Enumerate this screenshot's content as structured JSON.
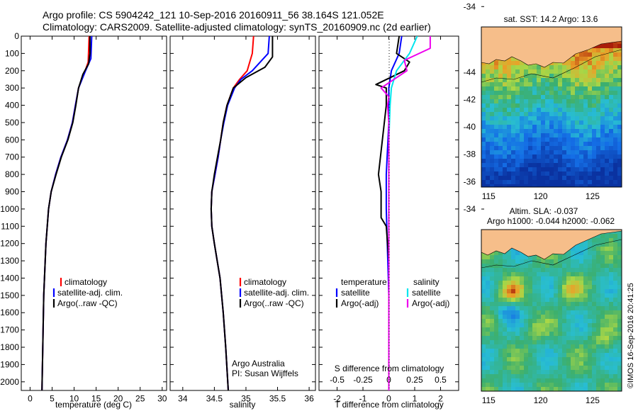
{
  "header": {
    "line1": "Argo profile: CS 5904242_121 10-Sep-2016 20160911_56 38.164S 121.052E",
    "line2": "Climatology: CARS2009. Satellite-adjusted climatology: synTS_20160909.nc (2d earlier)"
  },
  "sst_map": {
    "title": "sat. SST: 14.2 Argo: 13.6"
  },
  "sla_map": {
    "title1": "Altim. SLA: -0.037",
    "title2": "Argo h1000: -0.044 h2000: -0.062"
  },
  "credit": "©IMOS 16-Sep-2016 20:41:25",
  "colors": {
    "climatology": "#ff0000",
    "satellite": "#0000ff",
    "argo": "#000000",
    "cyan": "#00e5ee",
    "magenta": "#ee00ee"
  },
  "chart_data": [
    {
      "type": "line",
      "panel": "temperature",
      "xlabel": "temperature (deg C)",
      "ylabel": "",
      "xlim": [
        -2,
        31
      ],
      "ylim": [
        2050,
        0
      ],
      "xticks": [
        "0",
        "5",
        "10",
        "15",
        "20",
        "25",
        "30"
      ],
      "yticks": [
        "0",
        "100",
        "200",
        "300",
        "400",
        "500",
        "600",
        "700",
        "800",
        "900",
        "1000",
        "1100",
        "1200",
        "1300",
        "1400",
        "1500",
        "1600",
        "1700",
        "1800",
        "1900",
        "2000"
      ],
      "legend": [
        "climatology",
        "satellite-adj. clim.",
        "Argo(..raw -QC)"
      ],
      "series": [
        {
          "name": "climatology",
          "color": "red",
          "depth": [
            0,
            150,
            200,
            300,
            400,
            500,
            600,
            700,
            800,
            900,
            1000,
            1200,
            1500,
            2050
          ],
          "values": [
            13.4,
            13.2,
            12.5,
            11.0,
            10.3,
            9.6,
            8.5,
            7.0,
            5.8,
            4.8,
            4.2,
            3.6,
            3.1,
            2.7
          ]
        },
        {
          "name": "satellite-adj. clim.",
          "color": "blue",
          "depth": [
            0,
            130,
            200,
            300,
            400,
            500,
            600,
            700,
            800,
            900,
            1000,
            1200,
            1500,
            2050
          ],
          "values": [
            14.0,
            13.8,
            12.6,
            11.0,
            10.3,
            9.6,
            8.5,
            7.0,
            5.8,
            4.8,
            4.2,
            3.6,
            3.1,
            2.7
          ]
        },
        {
          "name": "Argo(..raw -QC)",
          "color": "black",
          "depth": [
            0,
            100,
            160,
            220,
            300,
            400,
            500,
            600,
            700,
            800,
            900,
            1000,
            1200,
            1500,
            2050
          ],
          "values": [
            13.6,
            13.6,
            13.3,
            12.0,
            11.0,
            10.4,
            9.7,
            8.6,
            7.1,
            5.9,
            4.8,
            4.2,
            3.6,
            3.1,
            2.7
          ]
        }
      ]
    },
    {
      "type": "line",
      "panel": "salinity",
      "xlabel": "salinity",
      "ylabel": "",
      "xlim": [
        33.8,
        36.1
      ],
      "ylim": [
        2050,
        0
      ],
      "xticks": [
        "34",
        "34.5",
        "35",
        "35.5",
        "36"
      ],
      "legend": [
        "climatology",
        "satellite-adj. clim.",
        "Argo(..raw -QC)"
      ],
      "annotation1": "Argo Australia",
      "annotation2": "PI: Susan Wijffels",
      "series": [
        {
          "name": "climatology",
          "color": "red",
          "depth": [
            0,
            100,
            200,
            250,
            300,
            400,
            500,
            600,
            700,
            800,
            900,
            1000,
            1100,
            1200,
            1400,
            1600,
            1800,
            2050
          ],
          "values": [
            35.12,
            35.1,
            35.02,
            34.9,
            34.8,
            34.7,
            34.64,
            34.6,
            34.56,
            34.51,
            34.46,
            34.45,
            34.46,
            34.5,
            34.59,
            34.64,
            34.68,
            34.72
          ]
        },
        {
          "name": "satellite-adj. clim.",
          "color": "blue",
          "depth": [
            0,
            100,
            200,
            250,
            300,
            400,
            500,
            600,
            700,
            800,
            900,
            1000,
            1100,
            1200,
            1400,
            1600,
            1800,
            2050
          ],
          "values": [
            35.37,
            35.35,
            35.1,
            34.92,
            34.82,
            34.71,
            34.65,
            34.6,
            34.56,
            34.51,
            34.46,
            34.45,
            34.46,
            34.5,
            34.59,
            34.64,
            34.68,
            34.72
          ]
        },
        {
          "name": "Argo(..raw -QC)",
          "color": "black",
          "depth": [
            0,
            120,
            180,
            240,
            300,
            400,
            500,
            600,
            700,
            800,
            900,
            1000,
            1100,
            1200,
            1400,
            1600,
            1800,
            2050
          ],
          "values": [
            35.42,
            35.42,
            35.3,
            35.0,
            34.8,
            34.7,
            34.64,
            34.6,
            34.55,
            34.5,
            34.46,
            34.45,
            34.46,
            34.5,
            34.59,
            34.64,
            34.68,
            34.72
          ]
        }
      ]
    },
    {
      "type": "line",
      "panel": "differences",
      "xlabel": "T difference from climatology",
      "xlabel2": "S difference from climatology",
      "xlim": [
        -2.7,
        2.7
      ],
      "ylim": [
        2050,
        0
      ],
      "xticks": [
        "-2",
        "-1",
        "0",
        "1",
        "2"
      ],
      "xticks2": [
        "-0.5",
        "-0.25",
        "0",
        "0.25",
        "0.5"
      ],
      "legend_left_title": "temperature",
      "legend_right_title": "salinity",
      "legend_left": [
        "satellite",
        "Argo(-adj)"
      ],
      "legend_right": [
        "satellite",
        "Argo(-adj)"
      ],
      "series": [
        {
          "name": "temperature satellite",
          "color": "blue",
          "depth": [
            0,
            100,
            200,
            300,
            500,
            800,
            1000,
            1500,
            2050
          ],
          "values": [
            0.5,
            0.4,
            0.1,
            0,
            0,
            -0.1,
            -0.1,
            0,
            0
          ]
        },
        {
          "name": "temperature Argo(-adj)",
          "color": "black",
          "depth": [
            0,
            100,
            150,
            200,
            280,
            300,
            400,
            800,
            900,
            950,
            1050,
            1100,
            1300,
            1500,
            2050
          ],
          "values": [
            0.4,
            0.3,
            0.8,
            0.6,
            -0.5,
            -0.1,
            -0.1,
            -0.4,
            -0.3,
            -0.3,
            -0.3,
            -0.1,
            0,
            0,
            0
          ]
        },
        {
          "name": "salinity satellite",
          "color": "cyan",
          "depth": [
            0,
            100,
            200,
            300,
            400,
            600,
            1000,
            2050
          ],
          "values": [
            1.1,
            0.8,
            0.3,
            0.1,
            0.05,
            0,
            0,
            0
          ]
        },
        {
          "name": "salinity Argo(-adj)",
          "color": "magenta",
          "depth": [
            0,
            70,
            140,
            200,
            260,
            300,
            350,
            400,
            500,
            2050
          ],
          "values": [
            1.6,
            1.6,
            0.6,
            0.7,
            0.1,
            -0.3,
            0,
            -0.05,
            0,
            0
          ]
        }
      ]
    },
    {
      "type": "heatmap",
      "panel": "sst_map",
      "xticks": [
        "115",
        "120",
        "125"
      ],
      "yticks": [
        "-34",
        "-36",
        "-38",
        "-40",
        "-42",
        "-44"
      ],
      "argo_position": {
        "lon": 121.052,
        "lat": -38.164
      }
    },
    {
      "type": "heatmap",
      "panel": "sla_map",
      "xticks": [
        "115",
        "120",
        "125"
      ],
      "yticks": [
        "-34",
        "-36",
        "-38",
        "-40",
        "-42",
        "-44"
      ],
      "argo_position": {
        "lon": 121.052,
        "lat": -38.164
      }
    }
  ]
}
